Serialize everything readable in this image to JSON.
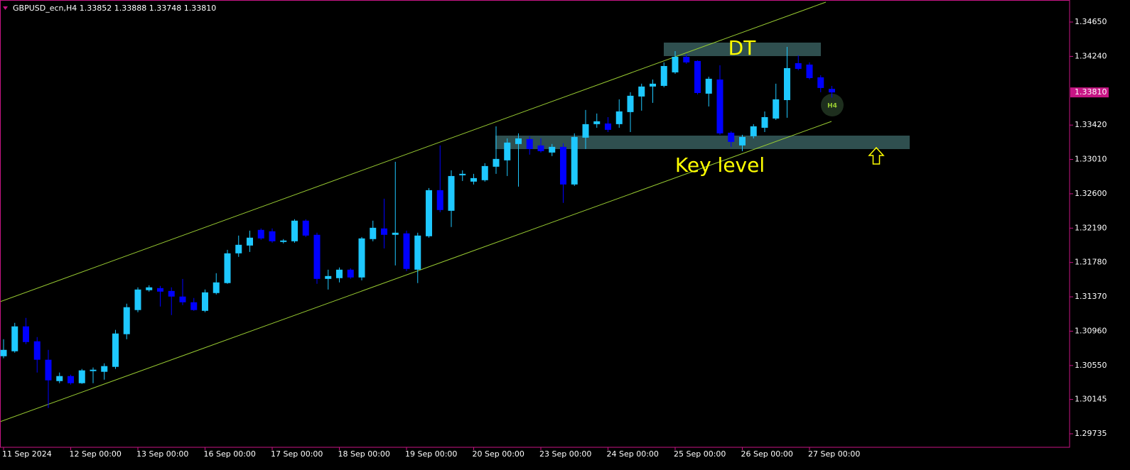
{
  "chart_data": {
    "type": "candlestick",
    "header": "GBPUSD_ecn,H4  1.33852 1.33888 1.33748 1.33810",
    "bull_color": "#1ec8ff",
    "bear_color": "#0000ff",
    "grid": false,
    "ylim": [
      1.29574,
      1.34913
    ],
    "yticks": [
      {
        "value": 1.3465,
        "label": "1.34650"
      },
      {
        "value": 1.3424,
        "label": "1.34240"
      },
      {
        "value": 1.3342,
        "label": "1.33420"
      },
      {
        "value": 1.3301,
        "label": "1.33010"
      },
      {
        "value": 1.326,
        "label": "1.32600"
      },
      {
        "value": 1.3219,
        "label": "1.32190"
      },
      {
        "value": 1.3178,
        "label": "1.31780"
      },
      {
        "value": 1.3137,
        "label": "1.31370"
      },
      {
        "value": 1.3096,
        "label": "1.30960"
      },
      {
        "value": 1.3055,
        "label": "1.30550"
      },
      {
        "value": 1.30145,
        "label": "1.30145"
      },
      {
        "value": 1.29735,
        "label": "1.29735"
      }
    ],
    "current_price": {
      "value": 1.3381,
      "label": "1.33810"
    },
    "categories": [
      "11 Sep 2024",
      null,
      null,
      null,
      null,
      null,
      "12 Sep 00:00",
      null,
      null,
      null,
      null,
      null,
      "13 Sep 00:00",
      null,
      null,
      null,
      null,
      null,
      "16 Sep 00:00",
      null,
      null,
      null,
      null,
      null,
      "17 Sep 00:00",
      null,
      null,
      null,
      null,
      null,
      "18 Sep 00:00",
      null,
      null,
      null,
      null,
      null,
      "19 Sep 00:00",
      null,
      null,
      null,
      null,
      null,
      "20 Sep 00:00",
      null,
      null,
      null,
      null,
      null,
      "23 Sep 00:00",
      null,
      null,
      null,
      null,
      null,
      "24 Sep 00:00",
      null,
      null,
      null,
      null,
      null,
      "25 Sep 00:00",
      null,
      null,
      null,
      null,
      null,
      "26 Sep 00:00",
      null,
      null,
      null,
      null,
      null,
      "27 Sep 00:00",
      null,
      null
    ],
    "open": [
      1.30661,
      1.3072,
      1.31017,
      1.30839,
      1.30619,
      1.30364,
      1.30424,
      1.30339,
      1.30483,
      1.30475,
      1.30534,
      1.30924,
      1.31212,
      1.31449,
      1.31474,
      1.3144,
      1.31373,
      1.31305,
      1.31203,
      1.31415,
      1.31534,
      1.31889,
      1.31982,
      1.32169,
      1.32152,
      1.32025,
      1.32033,
      1.32279,
      1.3211,
      1.31584,
      1.31593,
      1.31694,
      1.31601,
      1.32059,
      1.32186,
      1.3211,
      1.32127,
      1.31694,
      1.32093,
      1.32643,
      1.32397,
      1.32821,
      1.32745,
      1.32762,
      1.32923,
      1.32999,
      1.33194,
      1.33253,
      1.33177,
      1.33092,
      1.3316,
      1.32711,
      1.3327,
      1.33431,
      1.33439,
      1.33431,
      1.33575,
      1.33761,
      1.3388,
      1.33888,
      1.34049,
      1.34235,
      1.34185,
      1.33795,
      1.33964,
      1.33329,
      1.33177,
      1.33287,
      1.33388,
      1.33498,
      1.33718,
      1.34159,
      1.34142,
      1.3399,
      1.33852
    ],
    "high": [
      1.30864,
      1.31059,
      1.31118,
      1.3089,
      1.30737,
      1.30466,
      1.30441,
      1.30509,
      1.30526,
      1.30576,
      1.30975,
      1.31288,
      1.31483,
      1.31508,
      1.315,
      1.31483,
      1.31584,
      1.31356,
      1.31457,
      1.31652,
      1.31931,
      1.32101,
      1.3216,
      1.32186,
      1.32186,
      1.32059,
      1.32296,
      1.32296,
      1.32135,
      1.31694,
      1.3172,
      1.31711,
      1.32084,
      1.32279,
      1.32541,
      1.32982,
      1.3216,
      1.32135,
      1.32668,
      1.33177,
      1.3288,
      1.3288,
      1.32838,
      1.32965,
      1.33405,
      1.33261,
      1.33321,
      1.33287,
      1.33261,
      1.33194,
      1.33202,
      1.33321,
      1.336,
      1.33558,
      1.33515,
      1.33727,
      1.33812,
      1.33914,
      1.33964,
      1.34168,
      1.34303,
      1.34269,
      1.34193,
      1.33998,
      1.34134,
      1.33346,
      1.33304,
      1.33431,
      1.33583,
      1.33914,
      1.34354,
      1.34252,
      1.34168,
      1.34015,
      1.33888
    ],
    "low": [
      1.30636,
      1.30703,
      1.30805,
      1.30466,
      1.30043,
      1.30339,
      1.30322,
      1.30331,
      1.30339,
      1.30381,
      1.30509,
      1.30864,
      1.31186,
      1.31432,
      1.31254,
      1.31152,
      1.31271,
      1.31203,
      1.31186,
      1.31398,
      1.31525,
      1.31847,
      1.31906,
      1.3205,
      1.32016,
      1.32008,
      1.32016,
      1.32084,
      1.31525,
      1.31457,
      1.31542,
      1.31584,
      1.31567,
      1.32033,
      1.31948,
      1.31745,
      1.31677,
      1.31534,
      1.32076,
      1.3238,
      1.32203,
      1.32753,
      1.32711,
      1.32745,
      1.32838,
      1.32812,
      1.32685,
      1.33067,
      1.33092,
      1.3305,
      1.32491,
      1.32694,
      1.33134,
      1.33388,
      1.33337,
      1.33388,
      1.33337,
      1.33592,
      1.33685,
      1.33871,
      1.34032,
      1.34151,
      1.33786,
      1.33642,
      1.33304,
      1.3316,
      1.33109,
      1.33261,
      1.33337,
      1.33481,
      1.33507,
      1.34074,
      1.33964,
      1.33812,
      1.33748
    ],
    "close": [
      1.30737,
      1.31017,
      1.3083,
      1.30619,
      1.30373,
      1.30424,
      1.30339,
      1.30492,
      1.305,
      1.30543,
      1.30932,
      1.31246,
      1.31457,
      1.31483,
      1.31432,
      1.31373,
      1.31305,
      1.31212,
      1.31423,
      1.31542,
      1.31889,
      1.31991,
      1.32076,
      1.32067,
      1.32033,
      1.32042,
      1.32279,
      1.32101,
      1.31584,
      1.31618,
      1.31694,
      1.31601,
      1.32067,
      1.32194,
      1.3211,
      1.32135,
      1.31703,
      1.32101,
      1.32643,
      1.32406,
      1.32812,
      1.32838,
      1.32787,
      1.32931,
      1.33016,
      1.33211,
      1.33261,
      1.33134,
      1.33109,
      1.3316,
      1.32711,
      1.33278,
      1.33431,
      1.33465,
      1.33363,
      1.33583,
      1.3377,
      1.3388,
      1.33914,
      1.34125,
      1.34235,
      1.34168,
      1.33803,
      1.33973,
      1.33321,
      1.33219,
      1.33278,
      1.33405,
      1.33515,
      1.33727,
      1.341,
      1.34091,
      1.33981,
      1.33863,
      1.3381
    ],
    "annotations": {
      "top_zone": "DT",
      "key_zone": "Key level",
      "badge": "H4"
    }
  }
}
